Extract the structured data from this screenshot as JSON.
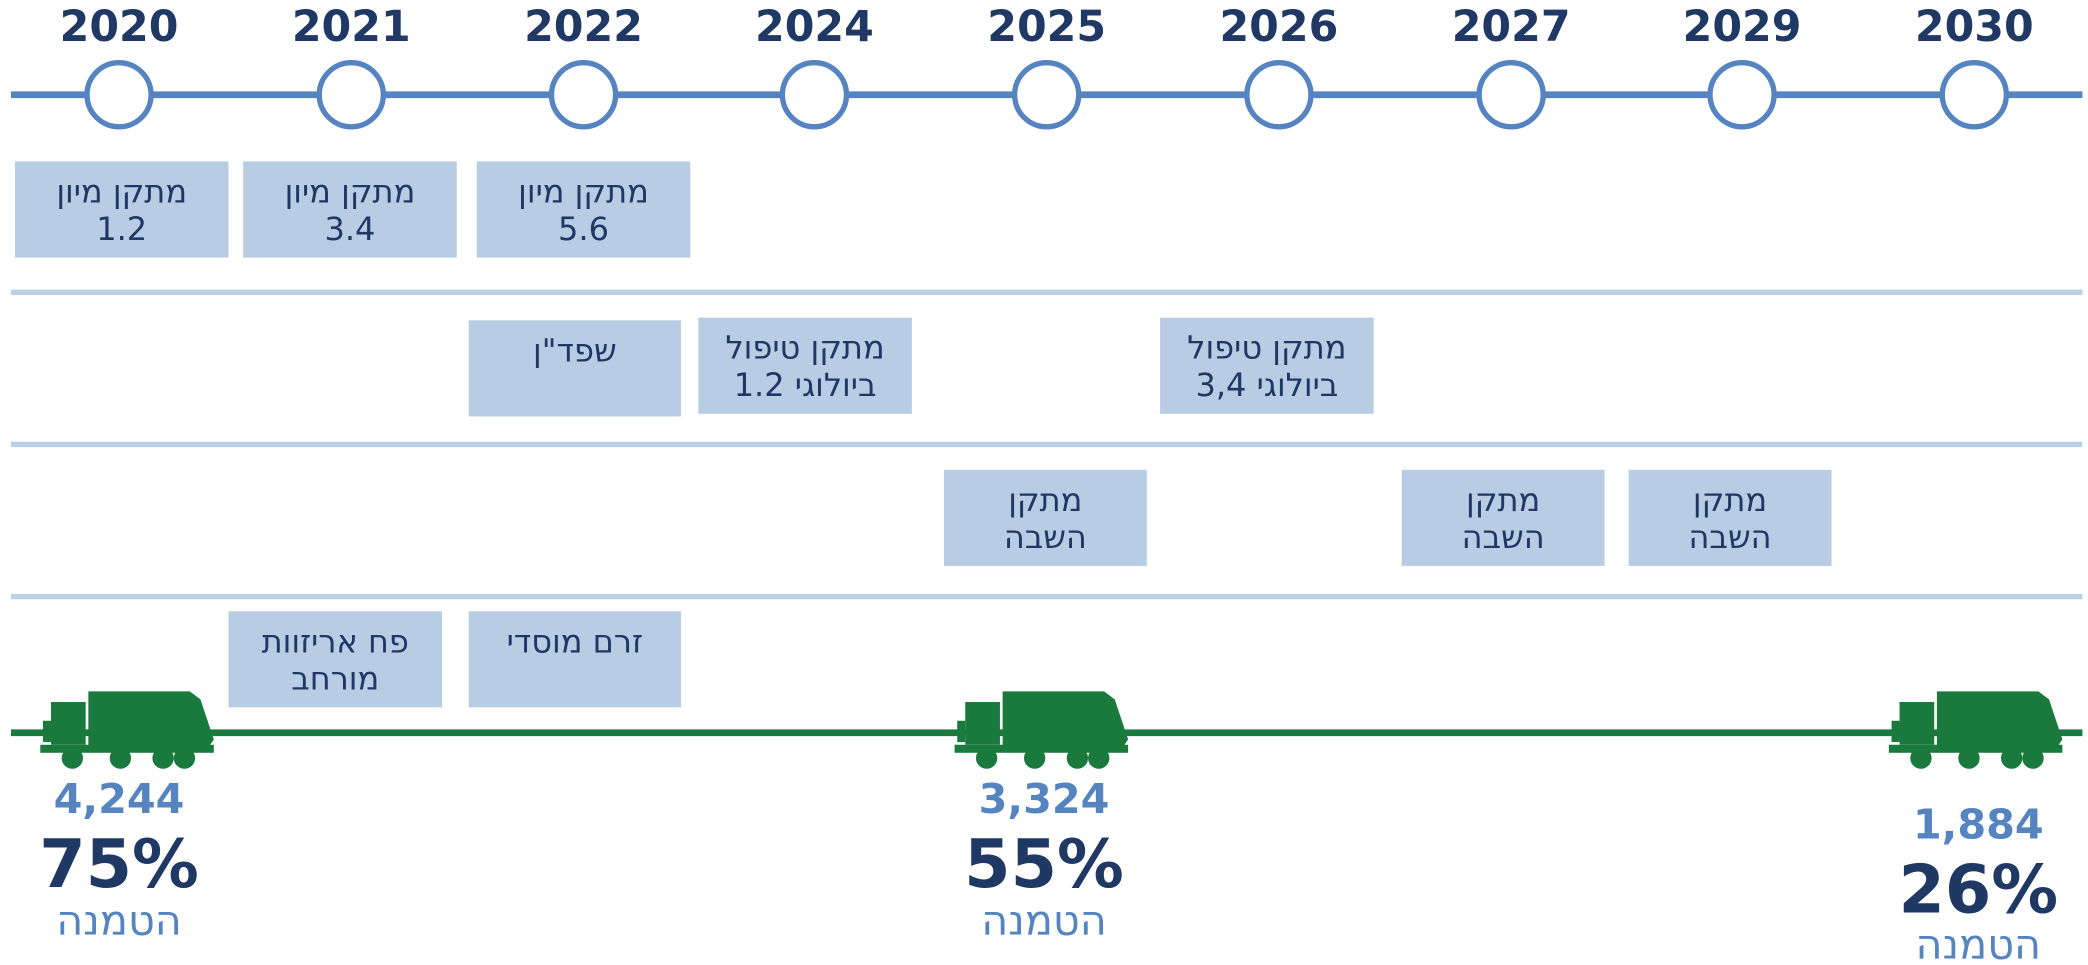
{
  "years": [
    "2020",
    "2021",
    "2022",
    "2024",
    "2025",
    "2026",
    "2027",
    "2029",
    "2030"
  ],
  "rows": [
    [
      {
        "lines": [
          "מתקן מיון",
          "1.2"
        ]
      },
      {
        "lines": [
          "מתקן מיון",
          "3.4"
        ]
      },
      {
        "lines": [
          "מתקן מיון",
          "5.6"
        ]
      }
    ],
    [
      {
        "lines": [
          "שפד\"ן"
        ]
      },
      {
        "lines": [
          "מתקן טיפול",
          "ביולוגי 1.2"
        ]
      },
      {
        "lines": [
          "מתקן טיפול",
          "ביולוגי 3,4"
        ]
      }
    ],
    [
      {
        "lines": [
          "מתקן",
          "השבה"
        ]
      },
      {
        "lines": [
          "מתקן",
          "השבה"
        ]
      },
      {
        "lines": [
          "מתקן",
          "השבה"
        ]
      }
    ],
    [
      {
        "lines": [
          "פח אריזוות",
          "מורחב"
        ]
      },
      {
        "lines": [
          "זרם מוסדי"
        ]
      }
    ]
  ],
  "milestones": [
    {
      "value": "4,244",
      "percent": "75%",
      "label": "הטמנה"
    },
    {
      "value": "3,324",
      "percent": "55%",
      "label": "הטמנה"
    },
    {
      "value": "1,884",
      "percent": "26%",
      "label": "הטמנה"
    }
  ]
}
